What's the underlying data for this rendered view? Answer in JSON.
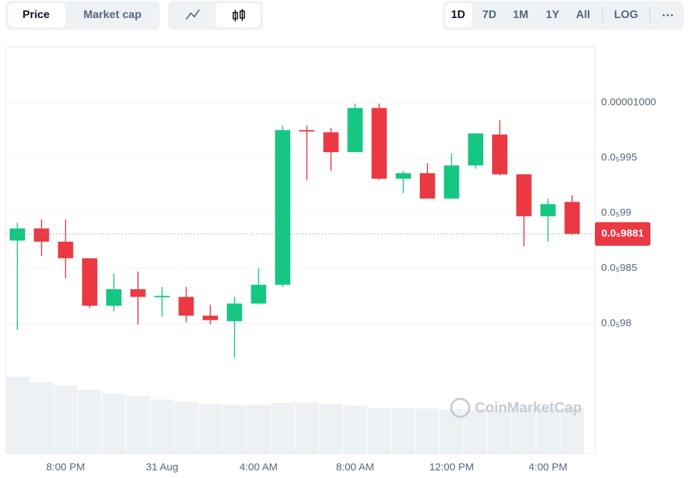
{
  "ui": {
    "metric_tabs": [
      "Price",
      "Market cap"
    ],
    "ranges": [
      "1D",
      "7D",
      "1M",
      "1Y",
      "All"
    ],
    "scale_toggle": "LOG"
  },
  "chart_data": {
    "type": "candlestick",
    "watermark": "CoinMarketCap",
    "categories": [
      null,
      null,
      "8:00 PM",
      null,
      null,
      null,
      "31 Aug",
      null,
      null,
      null,
      "4:00 AM",
      null,
      null,
      null,
      "8:00 AM",
      null,
      null,
      null,
      "12:00 PM",
      null,
      null,
      null,
      "4:00 PM",
      null
    ],
    "open": [
      9.875e-06,
      9.886e-06,
      9.874e-06,
      9.859e-06,
      9.816e-06,
      9.831e-06,
      9.824e-06,
      9.824e-06,
      9.807e-06,
      9.802e-06,
      9.818e-06,
      9.835e-06,
      9.975e-06,
      9.973e-06,
      9.955e-06,
      9.995e-06,
      9.931e-06,
      9.936e-06,
      9.913e-06,
      9.943e-06,
      9.971e-06,
      9.935e-06,
      9.897e-06,
      9.91e-06
    ],
    "high": [
      9.891e-06,
      9.894e-06,
      9.894e-06,
      9.859e-06,
      9.845e-06,
      9.847e-06,
      9.833e-06,
      9.833e-06,
      9.817e-06,
      9.824e-06,
      9.85e-06,
      9.979e-06,
      9.979e-06,
      9.977e-06,
      9.999e-06,
      9.999e-06,
      9.938e-06,
      9.945e-06,
      9.954e-06,
      9.972e-06,
      9.984e-06,
      9.935e-06,
      9.913e-06,
      9.916e-06
    ],
    "low": [
      9.794e-06,
      9.861e-06,
      9.841e-06,
      9.814e-06,
      9.811e-06,
      9.799e-06,
      9.806e-06,
      9.801e-06,
      9.799e-06,
      9.769e-06,
      9.817e-06,
      9.833e-06,
      9.93e-06,
      9.938e-06,
      9.955e-06,
      9.93e-06,
      9.918e-06,
      9.913e-06,
      9.913e-06,
      9.94e-06,
      9.934e-06,
      9.87e-06,
      9.874e-06,
      9.88e-06
    ],
    "close": [
      9.886e-06,
      9.874e-06,
      9.859e-06,
      9.816e-06,
      9.831e-06,
      9.824e-06,
      9.825e-06,
      9.807e-06,
      9.803e-06,
      9.818e-06,
      9.835e-06,
      9.975e-06,
      9.974e-06,
      9.955e-06,
      9.995e-06,
      9.931e-06,
      9.936e-06,
      9.913e-06,
      9.943e-06,
      9.972e-06,
      9.935e-06,
      9.897e-06,
      9.908e-06,
      9.881e-06
    ],
    "volume": [
      110,
      102,
      97,
      91,
      86,
      82,
      77,
      74,
      71,
      69,
      69,
      72,
      73,
      70,
      68,
      65,
      65,
      64,
      63,
      62,
      62,
      65,
      65,
      65
    ],
    "up_color": "#16c784",
    "down_color": "#ea3943",
    "volume_color": "#eef1f4",
    "ylim": [
      9.75e-06,
      1.005e-05
    ],
    "yticks": [
      {
        "value": 1e-05,
        "label": "0.00001000"
      },
      {
        "value": 9.95e-06,
        "label": "0.0₅995"
      },
      {
        "value": 9.9e-06,
        "label": "0.0₅99"
      },
      {
        "value": 9.85e-06,
        "label": "0.0₅985"
      },
      {
        "value": 9.8e-06,
        "label": "0.0₅98"
      }
    ],
    "grid": true,
    "current_price": {
      "value": 9.881e-06,
      "label": "0.0₅9881"
    }
  }
}
